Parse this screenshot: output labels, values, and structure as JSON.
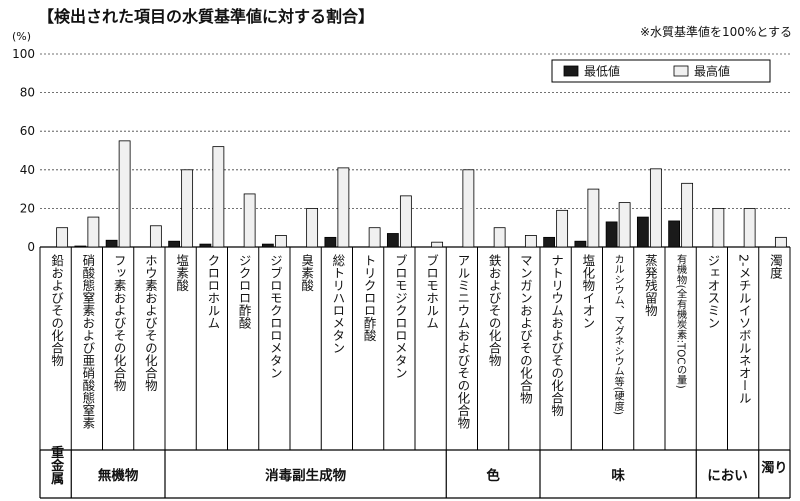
{
  "chart_data": {
    "type": "bar",
    "title": "【検出された項目の水質基準値に対する割合】",
    "note": "※水質基準値を100%とする",
    "ylabel": "(%)",
    "ylim": [
      0,
      100
    ],
    "yticks": [
      0,
      20,
      40,
      60,
      80,
      100
    ],
    "grid": true,
    "legend_position": "top-right",
    "categories": [
      "鉛およびその化合物",
      "硝酸態窒素および亜硝酸態窒素",
      "フッ素およびその化合物",
      "ホウ素およびその化合物",
      "塩素酸",
      "クロロホルム",
      "ジクロロ酢酸",
      "ジブロモクロロメタン",
      "臭素酸",
      "総トリハロメタン",
      "トリクロロ酢酸",
      "ブロモジクロロメタン",
      "ブロモホルム",
      "アルミニウムおよびその化合物",
      "鉄およびその化合物",
      "マンガンおよびその化合物",
      "ナトリウムおよびその化合物",
      "塩化物イオン",
      "カルシウム、マグネシウム等(硬度)",
      "蒸発残留物",
      "有機物(全有機炭素:TOCの量)",
      "ジェオスミン",
      "2-メチルイソボルネオール",
      "濁度"
    ],
    "series": [
      {
        "name": "最低値",
        "color": "#1a1a1a",
        "values": [
          0,
          0.5,
          3.5,
          0,
          3,
          1.5,
          0,
          1.5,
          0,
          5,
          0,
          7,
          0,
          0,
          0,
          0,
          5,
          3,
          13,
          15.5,
          13.5,
          0,
          0,
          0
        ]
      },
      {
        "name": "最高値",
        "color": "#f0f0f0",
        "values": [
          10,
          15.5,
          55,
          11,
          40,
          52,
          27.5,
          6,
          20,
          41,
          10,
          26.5,
          2.5,
          40,
          10,
          6,
          19,
          30,
          23,
          40.5,
          33,
          20,
          20,
          5
        ]
      }
    ],
    "groups": [
      {
        "label": "重金属",
        "count": 1
      },
      {
        "label": "無機物",
        "count": 3
      },
      {
        "label": "消毒副生成物",
        "count": 9
      },
      {
        "label": "色",
        "count": 3
      },
      {
        "label": "味",
        "count": 5
      },
      {
        "label": "におい",
        "count": 2
      },
      {
        "label": "濁り",
        "count": 1
      }
    ]
  }
}
